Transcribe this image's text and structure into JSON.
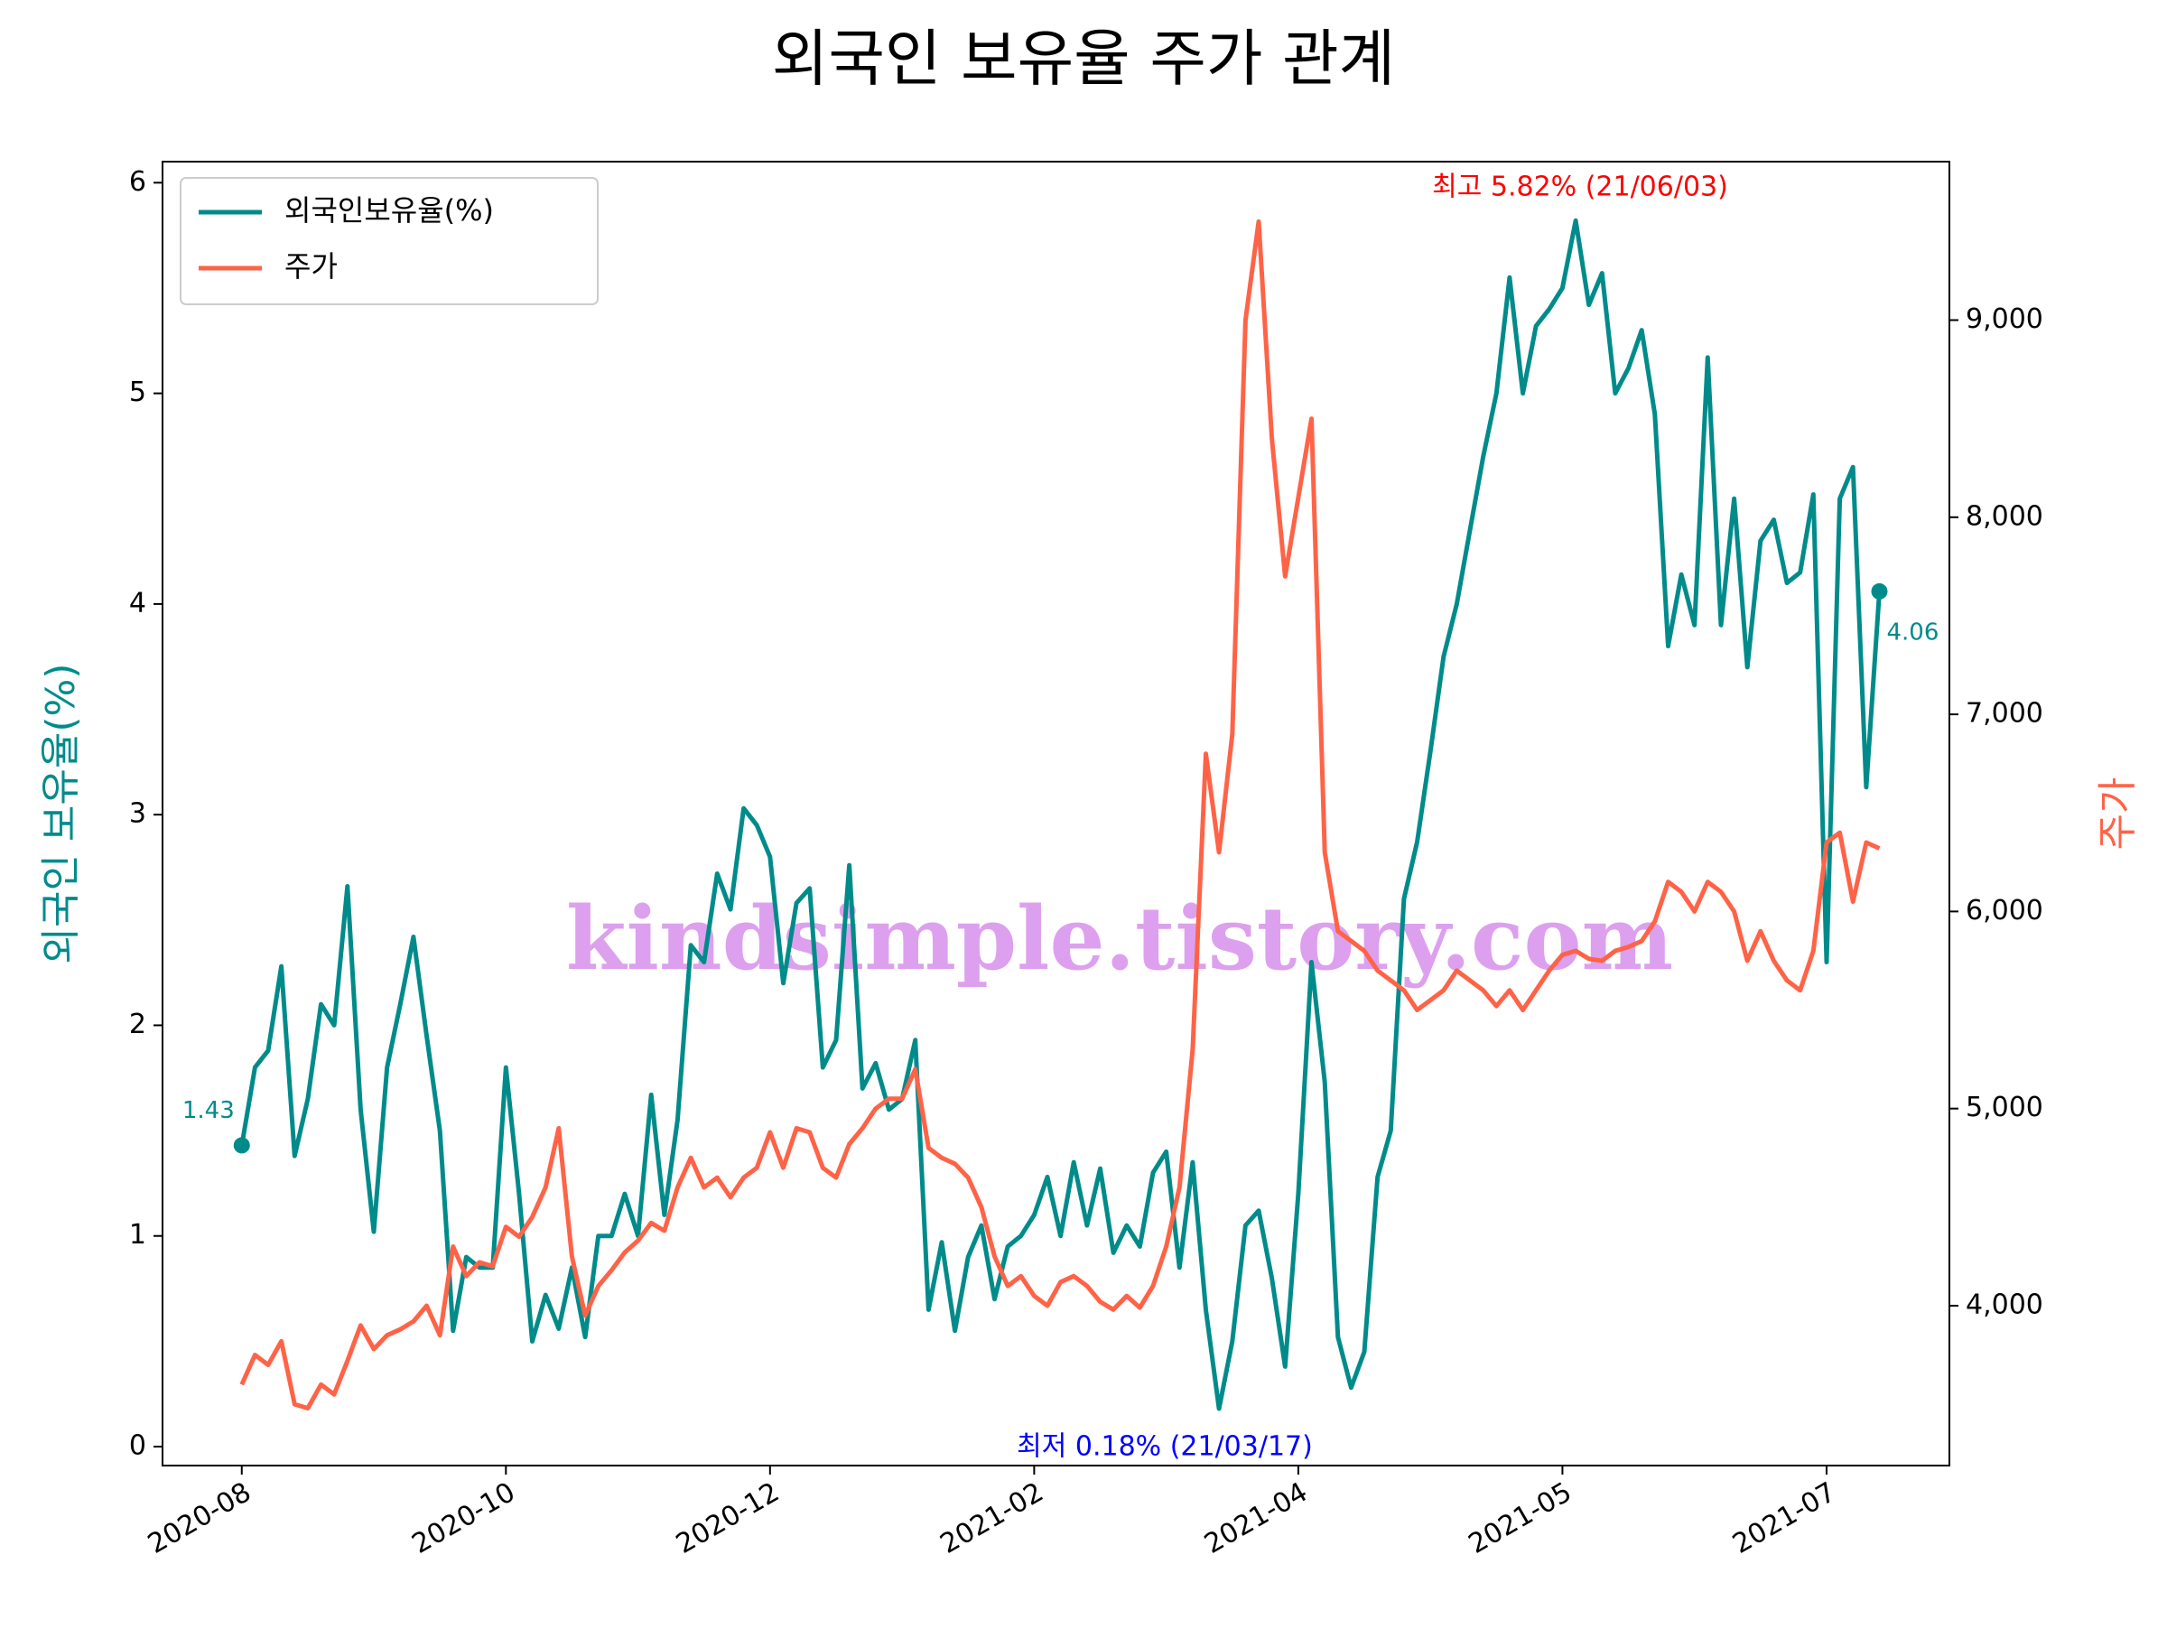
{
  "chart_data": {
    "type": "line",
    "title": "외국인 보유율 주가 관계",
    "y_label": "외국인 보유율(%)",
    "y2_label": "주가",
    "xticks": [
      {
        "value": 0,
        "label": "2020-08"
      },
      {
        "value": 20,
        "label": "2020-10"
      },
      {
        "value": 40,
        "label": "2020-12"
      },
      {
        "value": 60,
        "label": "2021-02"
      },
      {
        "value": 80,
        "label": "2021-04"
      },
      {
        "value": 100,
        "label": "2021-05"
      },
      {
        "value": 120,
        "label": "2021-07"
      }
    ],
    "xlim": [
      -6,
      129.3
    ],
    "ylim": [
      -0.09,
      6.1
    ],
    "yticks": [
      0,
      1,
      2,
      3,
      4,
      5,
      6
    ],
    "y2lim": [
      3189,
      9804
    ],
    "y2ticks": [
      {
        "value": 4000,
        "label": "4,000"
      },
      {
        "value": 5000,
        "label": "5,000"
      },
      {
        "value": 6000,
        "label": "6,000"
      },
      {
        "value": 7000,
        "label": "7,000"
      },
      {
        "value": 8000,
        "label": "8,000"
      },
      {
        "value": 9000,
        "label": "9,000"
      }
    ],
    "legend": "upper left",
    "series": [
      {
        "name": "외국인보유율(%)",
        "color": "#008b8b",
        "values": [
          1.43,
          1.8,
          1.88,
          2.28,
          1.38,
          1.65,
          2.1,
          2.0,
          2.66,
          1.6,
          1.02,
          1.8,
          2.1,
          2.42,
          1.95,
          1.5,
          0.55,
          0.9,
          0.85,
          0.85,
          1.8,
          1.2,
          0.5,
          0.72,
          0.56,
          0.85,
          0.52,
          1.0,
          1.0,
          1.2,
          1.0,
          1.67,
          1.1,
          1.55,
          2.38,
          2.3,
          2.72,
          2.55,
          3.03,
          2.95,
          2.8,
          2.2,
          2.58,
          2.65,
          1.8,
          1.93,
          2.76,
          1.7,
          1.82,
          1.6,
          1.65,
          1.93,
          0.65,
          0.97,
          0.55,
          0.9,
          1.05,
          0.7,
          0.95,
          1.0,
          1.1,
          1.28,
          1.0,
          1.35,
          1.05,
          1.32,
          0.92,
          1.05,
          0.95,
          1.3,
          1.4,
          0.85,
          1.35,
          0.65,
          0.18,
          0.5,
          1.05,
          1.12,
          0.8,
          0.38,
          1.2,
          2.3,
          1.73,
          0.52,
          0.28,
          0.45,
          1.28,
          1.5,
          2.6,
          2.87,
          3.3,
          3.75,
          4.0,
          4.35,
          4.7,
          5.0,
          5.55,
          5.0,
          5.32,
          5.4,
          5.5,
          5.82,
          5.42,
          5.57,
          5.0,
          5.12,
          5.3,
          4.9,
          3.8,
          4.14,
          3.9,
          5.17,
          3.9,
          4.5,
          3.7,
          4.3,
          4.4,
          4.1,
          4.15,
          4.52,
          2.3,
          4.5,
          4.65,
          3.13,
          4.06
        ]
      },
      {
        "name": "주가",
        "color": "#ff6347",
        "axis": "y2",
        "values": [
          3600,
          3750,
          3700,
          3820,
          3500,
          3480,
          3600,
          3550,
          3720,
          3900,
          3780,
          3850,
          3880,
          3920,
          4000,
          3850,
          4300,
          4150,
          4220,
          4200,
          4400,
          4350,
          4450,
          4600,
          4900,
          4250,
          3950,
          4100,
          4180,
          4270,
          4330,
          4420,
          4380,
          4600,
          4750,
          4600,
          4650,
          4550,
          4650,
          4700,
          4880,
          4700,
          4900,
          4880,
          4700,
          4650,
          4820,
          4900,
          5000,
          5050,
          5050,
          5200,
          4800,
          4750,
          4720,
          4650,
          4500,
          4250,
          4100,
          4150,
          4050,
          4000,
          4120,
          4150,
          4100,
          4020,
          3980,
          4050,
          3990,
          4100,
          4300,
          4600,
          5300,
          6800,
          6300,
          6900,
          9000,
          9500,
          8400,
          7700,
          8100,
          8500,
          6300,
          5900,
          5850,
          5800,
          5700,
          5650,
          5600,
          5500,
          5550,
          5600,
          5700,
          5650,
          5600,
          5520,
          5600,
          5500,
          5600,
          5700,
          5780,
          5800,
          5760,
          5750,
          5800,
          5820,
          5850,
          5950,
          6150,
          6100,
          6000,
          6150,
          6100,
          6000,
          5750,
          5900,
          5750,
          5650,
          5600,
          5800,
          6350,
          6400,
          6050,
          6350,
          6320
        ]
      }
    ],
    "annotations": [
      {
        "text": "최고 5.82% (21/06/03)",
        "color": "#ff0000"
      },
      {
        "text": "최저 0.18% (21/03/17)",
        "color": "#0000ff"
      }
    ],
    "watermark": "kindsimple.tistory.com"
  }
}
